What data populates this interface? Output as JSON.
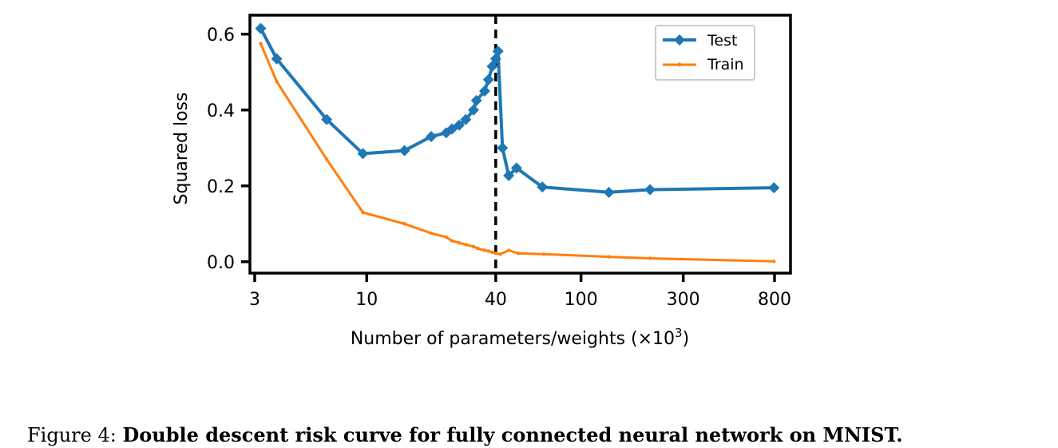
{
  "chart_data": {
    "type": "line",
    "xscale": "log",
    "xlabel": "Number of parameters/weights (×10",
    "xlabel_sup": "3",
    "xlabel_close": ")",
    "ylabel": "Squared loss",
    "xlim": [
      2.85,
      950
    ],
    "ylim": [
      -0.03,
      0.65
    ],
    "x_ticks": [
      3,
      10,
      40,
      100,
      300,
      800
    ],
    "x_tick_labels": [
      "3",
      "10",
      "40",
      "100",
      "300",
      "800"
    ],
    "y_ticks": [
      0.0,
      0.2,
      0.4,
      0.6
    ],
    "y_tick_labels": [
      "0.0",
      "0.2",
      "0.4",
      "0.6"
    ],
    "vline_x": 40,
    "legend_position": "top-right",
    "grid": false,
    "series": [
      {
        "name": "Test",
        "color": "#1f77b4",
        "marker": "diamond",
        "points": [
          [
            3.2,
            0.615
          ],
          [
            3.8,
            0.535
          ],
          [
            6.5,
            0.375
          ],
          [
            9.6,
            0.285
          ],
          [
            15,
            0.293
          ],
          [
            20,
            0.33
          ],
          [
            23.5,
            0.34
          ],
          [
            25,
            0.35
          ],
          [
            27,
            0.36
          ],
          [
            29,
            0.375
          ],
          [
            31.5,
            0.4
          ],
          [
            32.5,
            0.425
          ],
          [
            35.5,
            0.45
          ],
          [
            37,
            0.48
          ],
          [
            38.5,
            0.515
          ],
          [
            40,
            0.535
          ],
          [
            41,
            0.555
          ],
          [
            43,
            0.3
          ],
          [
            46,
            0.227
          ],
          [
            50,
            0.247
          ],
          [
            66,
            0.197
          ],
          [
            135,
            0.183
          ],
          [
            210,
            0.19
          ],
          [
            795,
            0.195
          ]
        ]
      },
      {
        "name": "Train",
        "color": "#ff7f0e",
        "marker": "point",
        "points": [
          [
            3.2,
            0.575
          ],
          [
            3.8,
            0.475
          ],
          [
            6.5,
            0.27
          ],
          [
            9.6,
            0.13
          ],
          [
            15,
            0.1
          ],
          [
            20,
            0.075
          ],
          [
            23.5,
            0.065
          ],
          [
            25,
            0.055
          ],
          [
            27,
            0.05
          ],
          [
            29,
            0.045
          ],
          [
            31.5,
            0.04
          ],
          [
            33,
            0.035
          ],
          [
            35.5,
            0.03
          ],
          [
            37,
            0.028
          ],
          [
            38.5,
            0.025
          ],
          [
            40,
            0.022
          ],
          [
            42,
            0.02
          ],
          [
            46,
            0.03
          ],
          [
            51,
            0.022
          ],
          [
            67,
            0.02
          ],
          [
            135,
            0.013
          ],
          [
            210,
            0.009
          ],
          [
            795,
            0.001
          ]
        ]
      }
    ]
  },
  "caption": {
    "label": "Figure 4: ",
    "text": "Double descent risk curve for fully connected neural network on MNIST."
  }
}
